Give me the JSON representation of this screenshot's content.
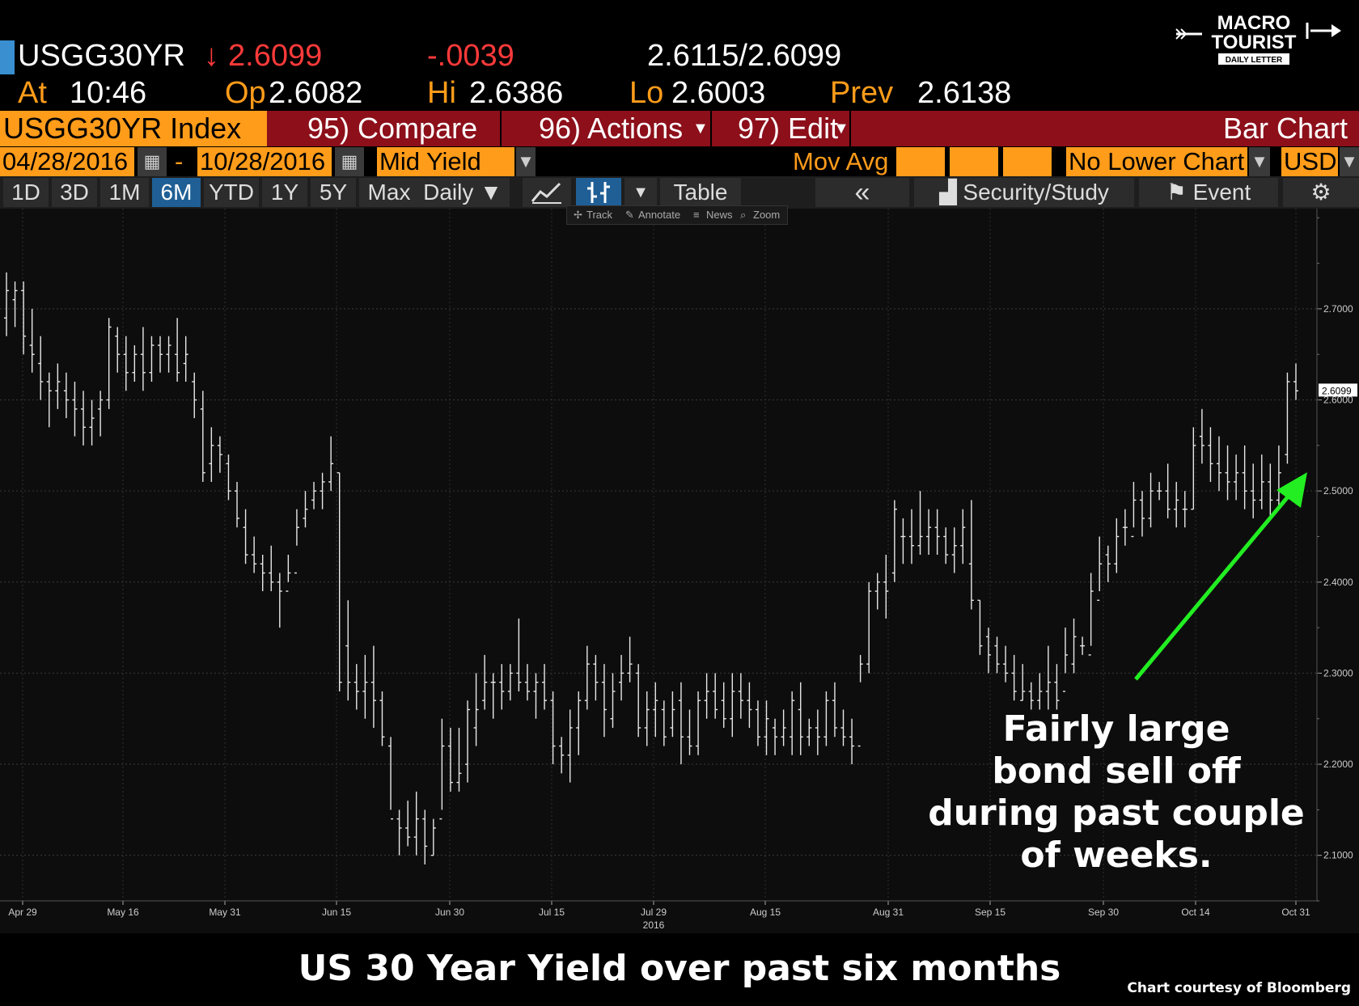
{
  "header": {
    "ticker": "USGG30YR",
    "last_arrow": "↓",
    "last": "2.6099",
    "change": "-.0039",
    "bid_ask": "2.6115/2.6099",
    "at_label": "At",
    "time": "10:46",
    "op_label": "Op",
    "open": "2.6082",
    "hi_label": "Hi",
    "high": "2.6386",
    "lo_label": "Lo",
    "low": "2.6003",
    "prev_label": "Prev",
    "prev": "2.6138"
  },
  "logo": {
    "line1": "MACRO",
    "line2": "TOURIST",
    "line3": "DAILY LETTER"
  },
  "toolbar": {
    "security": "USGG30YR Index",
    "compare": "95) Compare",
    "actions": "96) Actions",
    "edit": "97) Edit",
    "chart_type": "Bar Chart"
  },
  "settings": {
    "start_date": "04/28/2016",
    "dash": "-",
    "end_date": "10/28/2016",
    "field": "Mid Yield",
    "mov_avg": "Mov Avg",
    "lower_chart": "No Lower Chart",
    "currency": "USD"
  },
  "periods": {
    "items": [
      "1D",
      "3D",
      "1M",
      "6M",
      "YTD",
      "1Y",
      "5Y",
      "Max"
    ],
    "selected": "6M",
    "freq": "Daily ▼",
    "table": "Table",
    "collapse": "«",
    "security_study": "Security/Study",
    "event": "Event"
  },
  "mini_toolbar": {
    "track": "Track",
    "annotate": "Annotate",
    "news": "News",
    "zoom": "Zoom"
  },
  "annotation": {
    "line1": "Fairly large",
    "line2": "bond sell off",
    "line3": "during past couple",
    "line4": "of weeks."
  },
  "caption": "US 30 Year Yield over past six months",
  "credit": "Chart courtesy of Bloomberg",
  "colors": {
    "amber": "#ff9c1a",
    "red": "#ff3a3a",
    "arrow": "#22ee22",
    "toolbar_red": "#8c0f1a",
    "selected_tab": "#1f5f95"
  },
  "chart_data": {
    "type": "bar",
    "subtype": "ohlc",
    "ylim": [
      2.05,
      2.81
    ],
    "yticks": [
      "2.1000",
      "2.2000",
      "2.3000",
      "2.4000",
      "2.5000",
      "2.6000",
      "2.7000"
    ],
    "last_value_label": "2.6099",
    "x_labels": [
      "Apr 29",
      "May 16",
      "May 31",
      "Jun 15",
      "Jun 30",
      "Jul 15",
      "Jul 29",
      "Aug 15",
      "Aug 31",
      "Sep 15",
      "Sep 30",
      "Oct 14",
      "Oct 31"
    ],
    "x_sublabel": "2016",
    "bars": [
      [
        2.69,
        2.74,
        2.67,
        2.72
      ],
      [
        2.71,
        2.73,
        2.68,
        2.72
      ],
      [
        2.72,
        2.73,
        2.65,
        2.67
      ],
      [
        2.66,
        2.7,
        2.63,
        2.65
      ],
      [
        2.64,
        2.67,
        2.6,
        2.62
      ],
      [
        2.62,
        2.63,
        2.57,
        2.61
      ],
      [
        2.61,
        2.64,
        2.59,
        2.62
      ],
      [
        2.61,
        2.63,
        2.58,
        2.6
      ],
      [
        2.6,
        2.62,
        2.56,
        2.59
      ],
      [
        2.59,
        2.61,
        2.55,
        2.57
      ],
      [
        2.57,
        2.6,
        2.55,
        2.58
      ],
      [
        2.59,
        2.61,
        2.56,
        2.6
      ],
      [
        2.6,
        2.69,
        2.59,
        2.68
      ],
      [
        2.67,
        2.68,
        2.63,
        2.65
      ],
      [
        2.65,
        2.67,
        2.61,
        2.63
      ],
      [
        2.63,
        2.66,
        2.62,
        2.65
      ],
      [
        2.65,
        2.68,
        2.61,
        2.63
      ],
      [
        2.63,
        2.67,
        2.62,
        2.66
      ],
      [
        2.66,
        2.67,
        2.63,
        2.65
      ],
      [
        2.65,
        2.67,
        2.63,
        2.66
      ],
      [
        2.65,
        2.69,
        2.62,
        2.63
      ],
      [
        2.64,
        2.67,
        2.62,
        2.65
      ],
      [
        2.62,
        2.63,
        2.58,
        2.6
      ],
      [
        2.59,
        2.61,
        2.51,
        2.52
      ],
      [
        2.53,
        2.57,
        2.51,
        2.55
      ],
      [
        2.55,
        2.56,
        2.52,
        2.54
      ],
      [
        2.53,
        2.54,
        2.49,
        2.5
      ],
      [
        2.5,
        2.51,
        2.46,
        2.47
      ],
      [
        2.46,
        2.48,
        2.42,
        2.43
      ],
      [
        2.43,
        2.45,
        2.41,
        2.42
      ],
      [
        2.42,
        2.43,
        2.39,
        2.41
      ],
      [
        2.41,
        2.44,
        2.39,
        2.4
      ],
      [
        2.4,
        2.41,
        2.35,
        2.39
      ],
      [
        2.39,
        2.43,
        2.4,
        2.41
      ],
      [
        2.41,
        2.48,
        2.44,
        2.46
      ],
      [
        2.47,
        2.5,
        2.46,
        2.48
      ],
      [
        2.49,
        2.51,
        2.48,
        2.5
      ],
      [
        2.5,
        2.52,
        2.48,
        2.51
      ],
      [
        2.51,
        2.56,
        2.5,
        2.53
      ],
      [
        2.52,
        2.52,
        2.28,
        2.29
      ],
      [
        2.33,
        2.38,
        2.27,
        2.29
      ],
      [
        2.29,
        2.31,
        2.26,
        2.28
      ],
      [
        2.28,
        2.32,
        2.25,
        2.29
      ],
      [
        2.29,
        2.33,
        2.24,
        2.27
      ],
      [
        2.27,
        2.28,
        2.22,
        2.23
      ],
      [
        2.22,
        2.23,
        2.15,
        2.14
      ],
      [
        2.14,
        2.15,
        2.1,
        2.13
      ],
      [
        2.13,
        2.16,
        2.11,
        2.12
      ],
      [
        2.12,
        2.17,
        2.1,
        2.14
      ],
      [
        2.14,
        2.15,
        2.09,
        2.11
      ],
      [
        2.1,
        2.14,
        2.1,
        2.13
      ],
      [
        2.14,
        2.25,
        2.15,
        2.22
      ],
      [
        2.22,
        2.24,
        2.17,
        2.18
      ],
      [
        2.18,
        2.24,
        2.17,
        2.19
      ],
      [
        2.2,
        2.27,
        2.18,
        2.26
      ],
      [
        2.24,
        2.3,
        2.22,
        2.26
      ],
      [
        2.27,
        2.32,
        2.26,
        2.29
      ],
      [
        2.29,
        2.3,
        2.25,
        2.29
      ],
      [
        2.29,
        2.31,
        2.26,
        2.28
      ],
      [
        2.28,
        2.31,
        2.27,
        2.3
      ],
      [
        2.3,
        2.36,
        2.28,
        2.29
      ],
      [
        2.29,
        2.31,
        2.27,
        2.28
      ],
      [
        2.28,
        2.3,
        2.25,
        2.29
      ],
      [
        2.29,
        2.31,
        2.26,
        2.27
      ],
      [
        2.27,
        2.28,
        2.2,
        2.22
      ],
      [
        2.22,
        2.23,
        2.19,
        2.21
      ],
      [
        2.21,
        2.26,
        2.18,
        2.24
      ],
      [
        2.24,
        2.28,
        2.21,
        2.27
      ],
      [
        2.27,
        2.33,
        2.26,
        2.31
      ],
      [
        2.31,
        2.32,
        2.27,
        2.29
      ],
      [
        2.29,
        2.31,
        2.23,
        2.26
      ],
      [
        2.25,
        2.3,
        2.24,
        2.28
      ],
      [
        2.29,
        2.32,
        2.27,
        2.3
      ],
      [
        2.3,
        2.34,
        2.29,
        2.31
      ],
      [
        2.3,
        2.31,
        2.23,
        2.24
      ],
      [
        2.24,
        2.28,
        2.22,
        2.26
      ],
      [
        2.26,
        2.29,
        2.23,
        2.27
      ],
      [
        2.26,
        2.27,
        2.22,
        2.23
      ],
      [
        2.24,
        2.28,
        2.23,
        2.26
      ],
      [
        2.27,
        2.29,
        2.2,
        2.23
      ],
      [
        2.23,
        2.26,
        2.21,
        2.22
      ],
      [
        2.22,
        2.28,
        2.21,
        2.27
      ],
      [
        2.27,
        2.3,
        2.25,
        2.28
      ],
      [
        2.28,
        2.3,
        2.25,
        2.26
      ],
      [
        2.27,
        2.29,
        2.24,
        2.25
      ],
      [
        2.25,
        2.3,
        2.23,
        2.28
      ],
      [
        2.28,
        2.3,
        2.25,
        2.27
      ],
      [
        2.27,
        2.29,
        2.24,
        2.26
      ],
      [
        2.26,
        2.27,
        2.22,
        2.23
      ],
      [
        2.23,
        2.27,
        2.21,
        2.25
      ],
      [
        2.24,
        2.25,
        2.21,
        2.23
      ],
      [
        2.23,
        2.26,
        2.22,
        2.24
      ],
      [
        2.23,
        2.28,
        2.21,
        2.27
      ],
      [
        2.26,
        2.29,
        2.21,
        2.23
      ],
      [
        2.23,
        2.25,
        2.22,
        2.24
      ],
      [
        2.24,
        2.26,
        2.21,
        2.23
      ],
      [
        2.23,
        2.28,
        2.22,
        2.27
      ],
      [
        2.27,
        2.29,
        2.23,
        2.24
      ],
      [
        2.24,
        2.26,
        2.22,
        2.23
      ],
      [
        2.23,
        2.25,
        2.2,
        2.22
      ],
      [
        2.22,
        2.32,
        2.29,
        2.31
      ],
      [
        2.31,
        2.4,
        2.3,
        2.39
      ],
      [
        2.39,
        2.41,
        2.37,
        2.4
      ],
      [
        2.4,
        2.43,
        2.36,
        2.39
      ],
      [
        2.41,
        2.49,
        2.4,
        2.48
      ],
      [
        2.45,
        2.47,
        2.42,
        2.45
      ],
      [
        2.45,
        2.48,
        2.42,
        2.44
      ],
      [
        2.44,
        2.5,
        2.43,
        2.45
      ],
      [
        2.45,
        2.48,
        2.43,
        2.46
      ],
      [
        2.46,
        2.48,
        2.43,
        2.45
      ],
      [
        2.45,
        2.46,
        2.42,
        2.43
      ],
      [
        2.43,
        2.46,
        2.41,
        2.44
      ],
      [
        2.44,
        2.48,
        2.42,
        2.46
      ],
      [
        2.42,
        2.49,
        2.37,
        2.38
      ],
      [
        2.38,
        2.38,
        2.32,
        2.33
      ],
      [
        2.34,
        2.35,
        2.3,
        2.32
      ],
      [
        2.33,
        2.34,
        2.3,
        2.31
      ],
      [
        2.31,
        2.33,
        2.29,
        2.3
      ],
      [
        2.3,
        2.32,
        2.27,
        2.28
      ],
      [
        2.27,
        2.31,
        2.27,
        2.28
      ],
      [
        2.28,
        2.29,
        2.26,
        2.27
      ],
      [
        2.27,
        2.3,
        2.26,
        2.28
      ],
      [
        2.28,
        2.33,
        2.26,
        2.29
      ],
      [
        2.29,
        2.31,
        2.26,
        2.27
      ],
      [
        2.28,
        2.35,
        2.3,
        2.32
      ],
      [
        2.31,
        2.36,
        2.3,
        2.34
      ],
      [
        2.33,
        2.34,
        2.32,
        2.33
      ],
      [
        2.32,
        2.41,
        2.33,
        2.39
      ],
      [
        2.38,
        2.45,
        2.39,
        2.42
      ],
      [
        2.43,
        2.44,
        2.4,
        2.42
      ],
      [
        2.42,
        2.47,
        2.41,
        2.45
      ],
      [
        2.46,
        2.48,
        2.44,
        2.46
      ],
      [
        2.45,
        2.51,
        2.46,
        2.49
      ],
      [
        2.49,
        2.5,
        2.45,
        2.47
      ],
      [
        2.47,
        2.52,
        2.46,
        2.5
      ],
      [
        2.5,
        2.51,
        2.49,
        2.5
      ],
      [
        2.5,
        2.53,
        2.47,
        2.48
      ],
      [
        2.48,
        2.51,
        2.46,
        2.49
      ],
      [
        2.48,
        2.5,
        2.46,
        2.48
      ],
      [
        2.48,
        2.57,
        2.48,
        2.55
      ],
      [
        2.56,
        2.59,
        2.53,
        2.55
      ],
      [
        2.55,
        2.57,
        2.51,
        2.53
      ],
      [
        2.53,
        2.56,
        2.5,
        2.52
      ],
      [
        2.52,
        2.55,
        2.49,
        2.51
      ],
      [
        2.51,
        2.54,
        2.49,
        2.52
      ],
      [
        2.52,
        2.55,
        2.48,
        2.5
      ],
      [
        2.5,
        2.53,
        2.47,
        2.49
      ],
      [
        2.49,
        2.54,
        2.48,
        2.51
      ],
      [
        2.51,
        2.53,
        2.47,
        2.49
      ],
      [
        2.49,
        2.55,
        2.48,
        2.52
      ],
      [
        2.54,
        2.63,
        2.53,
        2.62
      ],
      [
        2.62,
        2.64,
        2.6,
        2.61
      ]
    ]
  }
}
